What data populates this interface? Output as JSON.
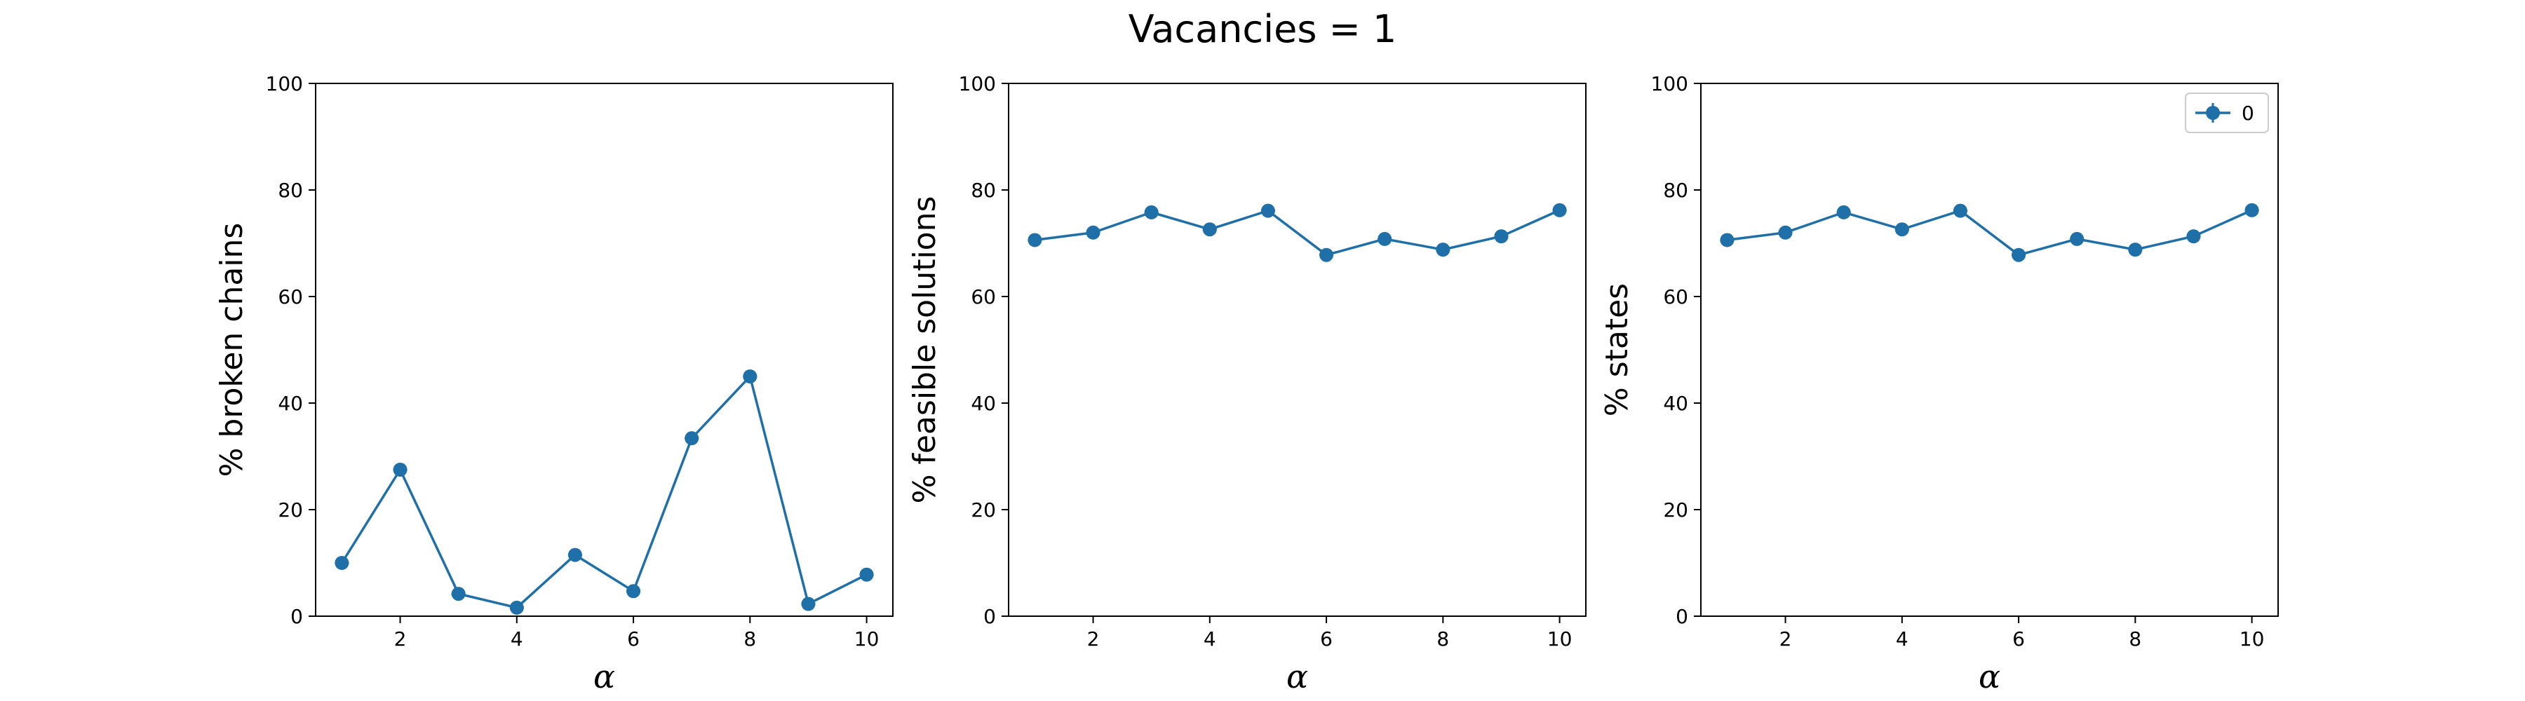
{
  "figure": {
    "suptitle": "Vacancies = 1"
  },
  "chart_data": [
    {
      "type": "line",
      "title": "",
      "xlabel": "α",
      "ylabel": "% broken chains",
      "xlim": [
        0.55,
        10.45
      ],
      "ylim": [
        0,
        100
      ],
      "xticks": [
        2,
        4,
        6,
        8,
        10
      ],
      "yticks": [
        0,
        20,
        40,
        60,
        80,
        100
      ],
      "grid": false,
      "series": [
        {
          "name": "",
          "color": "#1f6fa8",
          "marker": "circle",
          "error_bars": true,
          "x": [
            1,
            2,
            3,
            4,
            5,
            6,
            7,
            8,
            9,
            10
          ],
          "y": [
            10,
            27.5,
            4.2,
            1.6,
            11.5,
            4.7,
            33.4,
            45,
            2.3,
            7.8
          ]
        }
      ]
    },
    {
      "type": "line",
      "title": "",
      "xlabel": "α",
      "ylabel": "% feasible solutions",
      "xlim": [
        0.55,
        10.45
      ],
      "ylim": [
        0,
        100
      ],
      "xticks": [
        2,
        4,
        6,
        8,
        10
      ],
      "yticks": [
        0,
        20,
        40,
        60,
        80,
        100
      ],
      "grid": false,
      "series": [
        {
          "name": "",
          "color": "#1f6fa8",
          "marker": "circle",
          "error_bars": true,
          "x": [
            1,
            2,
            3,
            4,
            5,
            6,
            7,
            8,
            9,
            10
          ],
          "y": [
            70.6,
            72,
            75.8,
            72.6,
            76.1,
            67.8,
            70.8,
            68.8,
            71.3,
            76.2
          ]
        }
      ]
    },
    {
      "type": "line",
      "title": "",
      "xlabel": "α",
      "ylabel": "% states",
      "xlim": [
        0.55,
        10.45
      ],
      "ylim": [
        0,
        100
      ],
      "xticks": [
        2,
        4,
        6,
        8,
        10
      ],
      "yticks": [
        0,
        20,
        40,
        60,
        80,
        100
      ],
      "grid": false,
      "legend": "top-right",
      "series": [
        {
          "name": "0",
          "color": "#1f6fa8",
          "marker": "circle",
          "error_bars": true,
          "x": [
            1,
            2,
            3,
            4,
            5,
            6,
            7,
            8,
            9,
            10
          ],
          "y": [
            70.6,
            72,
            75.8,
            72.6,
            76.1,
            67.8,
            70.8,
            68.8,
            71.3,
            76.2
          ]
        }
      ]
    }
  ]
}
